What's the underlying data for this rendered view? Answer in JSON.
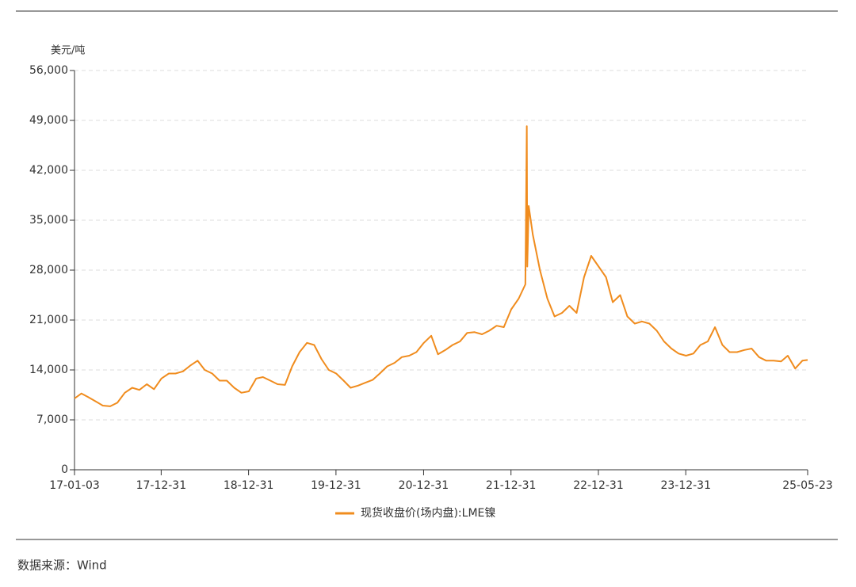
{
  "chart_data": {
    "type": "line",
    "y_label": "美元/吨",
    "source": "数据来源：Wind",
    "xlim": [
      "17-01-03",
      "25-05-23"
    ],
    "xticks": [
      "17-01-03",
      "17-12-31",
      "18-12-31",
      "19-12-31",
      "20-12-31",
      "21-12-31",
      "22-12-31",
      "23-12-31",
      "25-05-23"
    ],
    "ylim": [
      0,
      56000
    ],
    "yticks": [
      0,
      {
        "value": 7000,
        "label": "7,000"
      },
      {
        "value": 14000,
        "label": "14,000"
      },
      {
        "value": 21000,
        "label": "21,000"
      },
      {
        "value": 28000,
        "label": "28,000"
      },
      {
        "value": 35000,
        "label": "35,000"
      },
      {
        "value": 42000,
        "label": "42,000"
      },
      {
        "value": 49000,
        "label": "49,000"
      },
      {
        "value": 56000,
        "label": "56,000"
      }
    ],
    "grid": true,
    "x": [
      "17-01-03",
      "17-02-01",
      "17-03-01",
      "17-04-01",
      "17-05-01",
      "17-06-01",
      "17-07-01",
      "17-08-01",
      "17-09-01",
      "17-10-01",
      "17-11-01",
      "17-12-01",
      "18-01-01",
      "18-02-01",
      "18-03-01",
      "18-04-01",
      "18-05-01",
      "18-06-01",
      "18-07-01",
      "18-08-01",
      "18-09-01",
      "18-10-01",
      "18-11-01",
      "18-12-01",
      "19-01-01",
      "19-02-01",
      "19-03-01",
      "19-04-01",
      "19-05-01",
      "19-06-01",
      "19-07-01",
      "19-08-01",
      "19-09-01",
      "19-10-01",
      "19-11-01",
      "19-12-01",
      "20-01-01",
      "20-02-01",
      "20-03-01",
      "20-04-01",
      "20-05-01",
      "20-06-01",
      "20-07-01",
      "20-08-01",
      "20-09-01",
      "20-10-01",
      "20-11-01",
      "20-12-01",
      "21-01-01",
      "21-02-01",
      "21-03-01",
      "21-04-01",
      "21-05-01",
      "21-06-01",
      "21-07-01",
      "21-08-01",
      "21-09-01",
      "21-10-01",
      "21-11-01",
      "21-12-01",
      "22-01-01",
      "22-02-01",
      "22-03-01",
      "22-03-07",
      "22-03-09",
      "22-03-15",
      "22-04-01",
      "22-05-01",
      "22-06-01",
      "22-07-01",
      "22-08-01",
      "22-09-01",
      "22-10-01",
      "22-11-01",
      "22-12-01",
      "23-01-01",
      "23-02-01",
      "23-03-01",
      "23-04-01",
      "23-05-01",
      "23-06-01",
      "23-07-01",
      "23-08-01",
      "23-09-01",
      "23-10-01",
      "23-11-01",
      "23-12-01",
      "24-01-01",
      "24-02-01",
      "24-03-01",
      "24-04-01",
      "24-05-01",
      "24-06-01",
      "24-07-01",
      "24-08-01",
      "24-09-01",
      "24-10-01",
      "24-11-01",
      "24-12-01",
      "25-01-01",
      "25-02-01",
      "25-03-01",
      "25-04-01",
      "25-05-01",
      "25-05-23"
    ],
    "series": [
      {
        "name": "现货收盘价(场内盘):LME镍",
        "color": "#f08c1e",
        "values": [
          10000,
          10700,
          10200,
          9600,
          9000,
          8900,
          9400,
          10800,
          11500,
          11200,
          12000,
          11300,
          12800,
          13500,
          13500,
          13800,
          14600,
          15300,
          14000,
          13500,
          12500,
          12500,
          11500,
          10800,
          11000,
          12800,
          13000,
          12500,
          12000,
          11900,
          14500,
          16500,
          17800,
          17500,
          15500,
          14000,
          13500,
          12500,
          11500,
          11800,
          12200,
          12600,
          13500,
          14500,
          15000,
          15800,
          16000,
          16500,
          17800,
          18800,
          16200,
          16800,
          17500,
          18000,
          19200,
          19300,
          19000,
          19500,
          20200,
          20000,
          22500,
          24000,
          26000,
          48200,
          28500,
          37000,
          33000,
          28000,
          24000,
          21500,
          22000,
          23000,
          22000,
          27000,
          30000,
          28500,
          27000,
          23500,
          24500,
          21500,
          20500,
          20800,
          20500,
          19500,
          18000,
          17000,
          16300,
          16000,
          16300,
          17500,
          18000,
          20000,
          17500,
          16500,
          16500,
          16800,
          17000,
          15800,
          15300,
          15300,
          15200,
          16000,
          14200,
          15300,
          15400
        ]
      }
    ]
  }
}
